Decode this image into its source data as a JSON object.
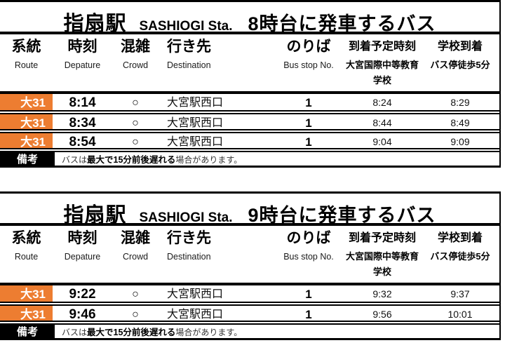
{
  "colors": {
    "route_badge_orange": "#ED7D31",
    "remark_label_black": "#000000",
    "text_black": "#000000"
  },
  "tables": [
    {
      "title": {
        "station_jp": "指扇駅",
        "station_en": "SASHIOGI Sta.",
        "suffix": "8時台に発車するバス"
      },
      "columns": {
        "route": {
          "jp": "系統",
          "en": "Route"
        },
        "time": {
          "jp": "時刻",
          "en": "Depature"
        },
        "crowd": {
          "jp": "混雑",
          "en": "Crowd"
        },
        "destination": {
          "jp": "行き先",
          "en": "Destination"
        },
        "bus_stop": {
          "jp": "のりば",
          "en": "Bus stop No."
        },
        "arrival": {
          "jp": "到着予定時刻",
          "sub": "大宮国際中等教育学校"
        },
        "school": {
          "jp": "学校到着",
          "sub": "バス停徒歩5分"
        }
      },
      "rows": [
        {
          "route": "大31",
          "time": "8:14",
          "crowd": "○",
          "destination": "大宮駅西口",
          "bus_stop": "1",
          "arrival": "8:24",
          "school": "8:29"
        },
        {
          "route": "大31",
          "time": "8:34",
          "crowd": "○",
          "destination": "大宮駅西口",
          "bus_stop": "1",
          "arrival": "8:44",
          "school": "8:49"
        },
        {
          "route": "大31",
          "time": "8:54",
          "crowd": "○",
          "destination": "大宮駅西口",
          "bus_stop": "1",
          "arrival": "9:04",
          "school": "9:09"
        }
      ],
      "remarks": {
        "label": "備考",
        "text_pre": "バスは",
        "text_bold": "最大で15分前後遅れる",
        "text_post": "場合があります。"
      }
    },
    {
      "title": {
        "station_jp": "指扇駅",
        "station_en": "SASHIOGI Sta.",
        "suffix": "9時台に発車するバス"
      },
      "columns": {
        "route": {
          "jp": "系統",
          "en": "Route"
        },
        "time": {
          "jp": "時刻",
          "en": "Depature"
        },
        "crowd": {
          "jp": "混雑",
          "en": "Crowd"
        },
        "destination": {
          "jp": "行き先",
          "en": "Destination"
        },
        "bus_stop": {
          "jp": "のりば",
          "en": "Bus stop No."
        },
        "arrival": {
          "jp": "到着予定時刻",
          "sub": "大宮国際中等教育学校"
        },
        "school": {
          "jp": "学校到着",
          "sub": "バス停徒歩5分"
        }
      },
      "rows": [
        {
          "route": "大31",
          "time": "9:22",
          "crowd": "○",
          "destination": "大宮駅西口",
          "bus_stop": "1",
          "arrival": "9:32",
          "school": "9:37"
        },
        {
          "route": "大31",
          "time": "9:46",
          "crowd": "○",
          "destination": "大宮駅西口",
          "bus_stop": "1",
          "arrival": "9:56",
          "school": "10:01"
        }
      ],
      "remarks": {
        "label": "備考",
        "text_pre": "バスは",
        "text_bold": "最大で15分前後遅れる",
        "text_post": "場合があります。"
      }
    }
  ]
}
